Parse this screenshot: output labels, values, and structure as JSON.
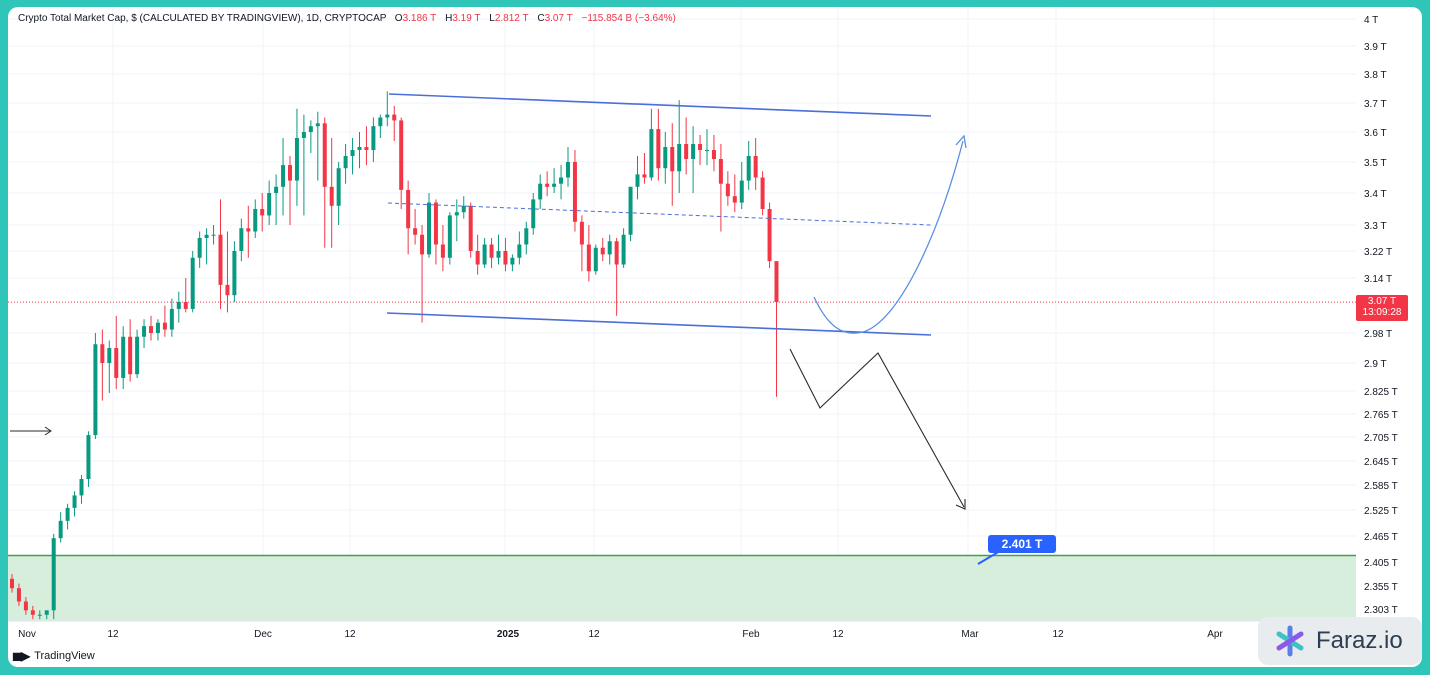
{
  "header": {
    "title": "Crypto Total Market Cap, $ (CALCULATED BY TRADINGVIEW), 1D, CRYPTOCAP",
    "o_label": "O",
    "o_value": "3.186 T",
    "h_label": "H",
    "h_value": "3.19 T",
    "l_label": "L",
    "l_value": "2.812 T",
    "c_label": "C",
    "c_value": "3.07 T",
    "change": "−115.854 B (−3.64%)"
  },
  "price_tag": {
    "price": "3.07 T",
    "countdown": "13:09:28"
  },
  "target": {
    "label": "2.401 T"
  },
  "branding": {
    "tradingview": "TradingView",
    "faraz": "Faraz.io"
  },
  "colors": {
    "up": "#089981",
    "down": "#f23645",
    "channel": "#4a6fd8",
    "projection_up": "#5a8fe0",
    "projection_down": "#2a2a2a",
    "support_zone": "#d6eedb",
    "support_line": "#43a047",
    "last_price_line": "#f23645"
  },
  "chart_data": {
    "type": "candlestick",
    "title": "Crypto Total Market Cap, $ (CALCULATED BY TRADINGVIEW), 1D, CRYPTOCAP",
    "x_tick_labels": [
      "Nov",
      "12",
      "Dec",
      "12",
      "2025",
      "12",
      "Feb",
      "12",
      "Mar",
      "12",
      "Apr"
    ],
    "y_tick_labels": [
      "4 T",
      "3.9 T",
      "3.8 T",
      "3.7 T",
      "3.6 T",
      "3.5 T",
      "3.4 T",
      "3.3 T",
      "3.22 T",
      "3.14 T",
      "2.98 T",
      "2.9 T",
      "2.825 T",
      "2.765 T",
      "2.705 T",
      "2.645 T",
      "2.585 T",
      "2.525 T",
      "2.465 T",
      "2.405 T",
      "2.355 T",
      "2.303 T"
    ],
    "ylim": [
      2.28,
      4.0
    ],
    "grid": true,
    "last_price": 3.07,
    "support_zone": [
      2.2,
      2.42
    ],
    "target_price": 2.401,
    "candles": [
      {
        "o": 2.37,
        "h": 2.38,
        "l": 2.34,
        "c": 2.35
      },
      {
        "o": 2.35,
        "h": 2.36,
        "l": 2.31,
        "c": 2.32
      },
      {
        "o": 2.32,
        "h": 2.33,
        "l": 2.29,
        "c": 2.3
      },
      {
        "o": 2.3,
        "h": 2.31,
        "l": 2.28,
        "c": 2.29
      },
      {
        "o": 2.29,
        "h": 2.3,
        "l": 2.28,
        "c": 2.29
      },
      {
        "o": 2.29,
        "h": 2.3,
        "l": 2.28,
        "c": 2.3
      },
      {
        "o": 2.3,
        "h": 2.47,
        "l": 2.28,
        "c": 2.46
      },
      {
        "o": 2.46,
        "h": 2.52,
        "l": 2.45,
        "c": 2.5
      },
      {
        "o": 2.5,
        "h": 2.54,
        "l": 2.48,
        "c": 2.53
      },
      {
        "o": 2.53,
        "h": 2.57,
        "l": 2.51,
        "c": 2.56
      },
      {
        "o": 2.56,
        "h": 2.61,
        "l": 2.54,
        "c": 2.6
      },
      {
        "o": 2.6,
        "h": 2.72,
        "l": 2.58,
        "c": 2.71
      },
      {
        "o": 2.71,
        "h": 2.98,
        "l": 2.7,
        "c": 2.95
      },
      {
        "o": 2.95,
        "h": 2.99,
        "l": 2.8,
        "c": 2.9
      },
      {
        "o": 2.9,
        "h": 2.96,
        "l": 2.82,
        "c": 2.94
      },
      {
        "o": 2.94,
        "h": 3.03,
        "l": 2.83,
        "c": 2.86
      },
      {
        "o": 2.86,
        "h": 3.0,
        "l": 2.83,
        "c": 2.97
      },
      {
        "o": 2.97,
        "h": 3.02,
        "l": 2.85,
        "c": 2.87
      },
      {
        "o": 2.87,
        "h": 2.99,
        "l": 2.86,
        "c": 2.97
      },
      {
        "o": 2.97,
        "h": 3.02,
        "l": 2.94,
        "c": 3.0
      },
      {
        "o": 3.0,
        "h": 3.03,
        "l": 2.96,
        "c": 2.98
      },
      {
        "o": 2.98,
        "h": 3.02,
        "l": 2.96,
        "c": 3.01
      },
      {
        "o": 3.01,
        "h": 3.06,
        "l": 2.97,
        "c": 2.99
      },
      {
        "o": 2.99,
        "h": 3.08,
        "l": 2.97,
        "c": 3.05
      },
      {
        "o": 3.05,
        "h": 3.1,
        "l": 3.01,
        "c": 3.07
      },
      {
        "o": 3.07,
        "h": 3.14,
        "l": 3.04,
        "c": 3.05
      },
      {
        "o": 3.05,
        "h": 3.22,
        "l": 3.04,
        "c": 3.2
      },
      {
        "o": 3.2,
        "h": 3.28,
        "l": 3.17,
        "c": 3.26
      },
      {
        "o": 3.26,
        "h": 3.29,
        "l": 3.18,
        "c": 3.27
      },
      {
        "o": 3.27,
        "h": 3.3,
        "l": 3.24,
        "c": 3.27
      },
      {
        "o": 3.27,
        "h": 3.38,
        "l": 3.05,
        "c": 3.12
      },
      {
        "o": 3.12,
        "h": 3.28,
        "l": 3.04,
        "c": 3.09
      },
      {
        "o": 3.09,
        "h": 3.25,
        "l": 3.07,
        "c": 3.22
      },
      {
        "o": 3.22,
        "h": 3.32,
        "l": 3.19,
        "c": 3.29
      },
      {
        "o": 3.29,
        "h": 3.36,
        "l": 3.2,
        "c": 3.28
      },
      {
        "o": 3.28,
        "h": 3.38,
        "l": 3.26,
        "c": 3.35
      },
      {
        "o": 3.35,
        "h": 3.4,
        "l": 3.28,
        "c": 3.33
      },
      {
        "o": 3.33,
        "h": 3.44,
        "l": 3.3,
        "c": 3.4
      },
      {
        "o": 3.4,
        "h": 3.46,
        "l": 3.3,
        "c": 3.42
      },
      {
        "o": 3.42,
        "h": 3.58,
        "l": 3.33,
        "c": 3.49
      },
      {
        "o": 3.49,
        "h": 3.52,
        "l": 3.3,
        "c": 3.44
      },
      {
        "o": 3.44,
        "h": 3.68,
        "l": 3.36,
        "c": 3.58
      },
      {
        "o": 3.58,
        "h": 3.66,
        "l": 3.33,
        "c": 3.6
      },
      {
        "o": 3.6,
        "h": 3.64,
        "l": 3.53,
        "c": 3.62
      },
      {
        "o": 3.62,
        "h": 3.67,
        "l": 3.44,
        "c": 3.63
      },
      {
        "o": 3.63,
        "h": 3.65,
        "l": 3.23,
        "c": 3.42
      },
      {
        "o": 3.42,
        "h": 3.58,
        "l": 3.23,
        "c": 3.36
      },
      {
        "o": 3.36,
        "h": 3.5,
        "l": 3.3,
        "c": 3.48
      },
      {
        "o": 3.48,
        "h": 3.56,
        "l": 3.43,
        "c": 3.52
      },
      {
        "o": 3.52,
        "h": 3.58,
        "l": 3.46,
        "c": 3.54
      },
      {
        "o": 3.54,
        "h": 3.6,
        "l": 3.48,
        "c": 3.55
      },
      {
        "o": 3.55,
        "h": 3.62,
        "l": 3.49,
        "c": 3.54
      },
      {
        "o": 3.54,
        "h": 3.65,
        "l": 3.5,
        "c": 3.62
      },
      {
        "o": 3.62,
        "h": 3.66,
        "l": 3.58,
        "c": 3.65
      },
      {
        "o": 3.65,
        "h": 3.74,
        "l": 3.62,
        "c": 3.66
      },
      {
        "o": 3.66,
        "h": 3.69,
        "l": 3.57,
        "c": 3.64
      },
      {
        "o": 3.64,
        "h": 3.65,
        "l": 3.35,
        "c": 3.41
      },
      {
        "o": 3.41,
        "h": 3.44,
        "l": 3.21,
        "c": 3.29
      },
      {
        "o": 3.29,
        "h": 3.35,
        "l": 3.24,
        "c": 3.27
      },
      {
        "o": 3.27,
        "h": 3.3,
        "l": 3.01,
        "c": 3.21
      },
      {
        "o": 3.21,
        "h": 3.4,
        "l": 3.2,
        "c": 3.37
      },
      {
        "o": 3.37,
        "h": 3.38,
        "l": 3.18,
        "c": 3.24
      },
      {
        "o": 3.24,
        "h": 3.3,
        "l": 3.16,
        "c": 3.2
      },
      {
        "o": 3.2,
        "h": 3.34,
        "l": 3.18,
        "c": 3.33
      },
      {
        "o": 3.33,
        "h": 3.38,
        "l": 3.25,
        "c": 3.34
      },
      {
        "o": 3.34,
        "h": 3.39,
        "l": 3.32,
        "c": 3.36
      },
      {
        "o": 3.36,
        "h": 3.37,
        "l": 3.2,
        "c": 3.22
      },
      {
        "o": 3.22,
        "h": 3.27,
        "l": 3.15,
        "c": 3.18
      },
      {
        "o": 3.18,
        "h": 3.26,
        "l": 3.17,
        "c": 3.24
      },
      {
        "o": 3.24,
        "h": 3.26,
        "l": 3.17,
        "c": 3.2
      },
      {
        "o": 3.2,
        "h": 3.27,
        "l": 3.18,
        "c": 3.22
      },
      {
        "o": 3.22,
        "h": 3.26,
        "l": 3.16,
        "c": 3.18
      },
      {
        "o": 3.18,
        "h": 3.21,
        "l": 3.16,
        "c": 3.2
      },
      {
        "o": 3.2,
        "h": 3.28,
        "l": 3.18,
        "c": 3.24
      },
      {
        "o": 3.24,
        "h": 3.31,
        "l": 3.21,
        "c": 3.29
      },
      {
        "o": 3.29,
        "h": 3.4,
        "l": 3.27,
        "c": 3.38
      },
      {
        "o": 3.38,
        "h": 3.46,
        "l": 3.35,
        "c": 3.43
      },
      {
        "o": 3.43,
        "h": 3.47,
        "l": 3.39,
        "c": 3.42
      },
      {
        "o": 3.42,
        "h": 3.48,
        "l": 3.4,
        "c": 3.43
      },
      {
        "o": 3.43,
        "h": 3.49,
        "l": 3.38,
        "c": 3.45
      },
      {
        "o": 3.45,
        "h": 3.55,
        "l": 3.42,
        "c": 3.5
      },
      {
        "o": 3.5,
        "h": 3.54,
        "l": 3.28,
        "c": 3.31
      },
      {
        "o": 3.31,
        "h": 3.33,
        "l": 3.16,
        "c": 3.24
      },
      {
        "o": 3.24,
        "h": 3.3,
        "l": 3.13,
        "c": 3.16
      },
      {
        "o": 3.16,
        "h": 3.24,
        "l": 3.15,
        "c": 3.23
      },
      {
        "o": 3.23,
        "h": 3.26,
        "l": 3.19,
        "c": 3.21
      },
      {
        "o": 3.21,
        "h": 3.27,
        "l": 3.18,
        "c": 3.25
      },
      {
        "o": 3.25,
        "h": 3.26,
        "l": 3.03,
        "c": 3.18
      },
      {
        "o": 3.18,
        "h": 3.29,
        "l": 3.17,
        "c": 3.27
      },
      {
        "o": 3.27,
        "h": 3.42,
        "l": 3.25,
        "c": 3.42
      },
      {
        "o": 3.42,
        "h": 3.52,
        "l": 3.38,
        "c": 3.46
      },
      {
        "o": 3.46,
        "h": 3.53,
        "l": 3.43,
        "c": 3.45
      },
      {
        "o": 3.45,
        "h": 3.68,
        "l": 3.44,
        "c": 3.61
      },
      {
        "o": 3.61,
        "h": 3.68,
        "l": 3.44,
        "c": 3.48
      },
      {
        "o": 3.48,
        "h": 3.6,
        "l": 3.43,
        "c": 3.55
      },
      {
        "o": 3.55,
        "h": 3.63,
        "l": 3.36,
        "c": 3.47
      },
      {
        "o": 3.47,
        "h": 3.71,
        "l": 3.4,
        "c": 3.56
      },
      {
        "o": 3.56,
        "h": 3.65,
        "l": 3.46,
        "c": 3.51
      },
      {
        "o": 3.51,
        "h": 3.62,
        "l": 3.4,
        "c": 3.56
      },
      {
        "o": 3.56,
        "h": 3.59,
        "l": 3.49,
        "c": 3.54
      },
      {
        "o": 3.54,
        "h": 3.61,
        "l": 3.49,
        "c": 3.54
      },
      {
        "o": 3.54,
        "h": 3.59,
        "l": 3.47,
        "c": 3.51
      },
      {
        "o": 3.51,
        "h": 3.56,
        "l": 3.28,
        "c": 3.43
      },
      {
        "o": 3.43,
        "h": 3.47,
        "l": 3.36,
        "c": 3.39
      },
      {
        "o": 3.39,
        "h": 3.46,
        "l": 3.34,
        "c": 3.37
      },
      {
        "o": 3.37,
        "h": 3.5,
        "l": 3.35,
        "c": 3.44
      },
      {
        "o": 3.44,
        "h": 3.57,
        "l": 3.41,
        "c": 3.52
      },
      {
        "o": 3.52,
        "h": 3.58,
        "l": 3.41,
        "c": 3.45
      },
      {
        "o": 3.45,
        "h": 3.47,
        "l": 3.33,
        "c": 3.35
      },
      {
        "o": 3.35,
        "h": 3.37,
        "l": 3.17,
        "c": 3.19
      },
      {
        "o": 3.19,
        "h": 3.19,
        "l": 2.81,
        "c": 3.07
      }
    ]
  }
}
